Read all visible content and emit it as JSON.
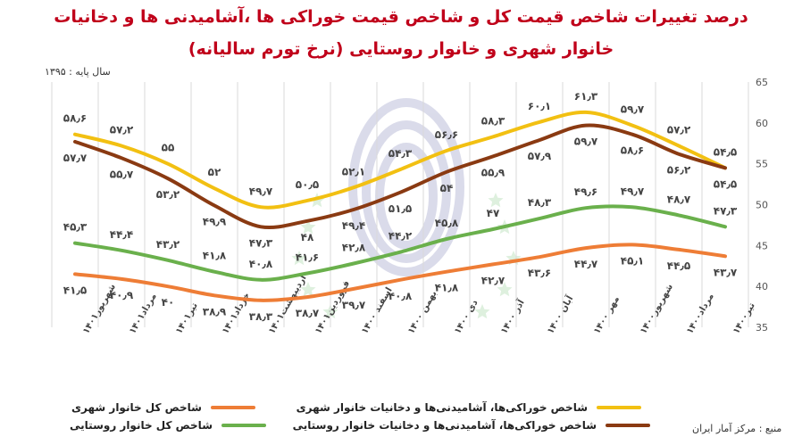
{
  "header": {
    "title_line1": "درصد تغییرات شاخص قیمت کل و شاخص قیمت خوراکی ها ،آشامیدنی ها و دخانیات",
    "title_line2": "خانوار شهری و خانوار روستایی (نرخ تورم سالیانه)",
    "base_year": "سال پایه : ۱۳۹۵",
    "source": "منبع : مرکز آمار ایران"
  },
  "chart_data": {
    "type": "line",
    "categories": [
      "شهریور۱۴۰۱",
      "مرداد۱۴۰۱",
      "تیر۱۴۰۱",
      "خرداد۱۴۰۱",
      "اردیبهشت۱۴۰۱",
      "فروردین۱۴۰۱",
      "اسفند ۱۴۰۰",
      "بهمن ۱۴۰۰",
      "دی ۱۴۰۰",
      "آذر ۱۴۰۰",
      "آبان ۱۴۰۰",
      "مهر ۱۴۰۰",
      "شهریور۱۴۰۰",
      "مرداد۱۴۰۰",
      "تیر۱۴۰۰"
    ],
    "ylim": [
      35,
      65
    ],
    "yticks": [
      35,
      40,
      45,
      50,
      55,
      60,
      65
    ],
    "grid": "vertical",
    "legend_position": "bottom",
    "series": [
      {
        "name": "شاخص خوراکی‌ها، آشامیدنی‌ها و دخانیات خانوار شهری",
        "color": "#f2c012",
        "values": [
          58.6,
          57.2,
          55,
          52,
          49.7,
          50.5,
          52.1,
          54.3,
          56.6,
          58.3,
          60.1,
          61.3,
          59.7,
          57.2,
          54.5
        ],
        "labels": [
          "۵۸٫۶",
          "۵۷٫۲",
          "۵۵",
          "۵۲",
          "۴۹٫۷",
          "۵۰٫۵",
          "۵۲٫۱",
          "۵۴٫۳",
          "۵۶٫۶",
          "۵۸٫۳",
          "۶۰٫۱",
          "۶۱٫۳",
          "۵۹٫۷",
          "۵۷٫۲",
          "۵۴٫۵"
        ]
      },
      {
        "name": "شاخص خوراکی‌ها، آشامیدنی‌ها و دخانیات خانوار روستایی",
        "color": "#8a3a12",
        "values": [
          57.7,
          55.7,
          53.2,
          49.9,
          47.3,
          48,
          49.4,
          51.5,
          54,
          55.9,
          57.9,
          59.7,
          58.6,
          56.2,
          54.5
        ],
        "labels": [
          "۵۷٫۷",
          "۵۵٫۷",
          "۵۳٫۲",
          "۴۹٫۹",
          "۴۷٫۳",
          "۴۸",
          "۴۹٫۴",
          "۵۱٫۵",
          "۵۴",
          "۵۵٫۹",
          "۵۷٫۹",
          "۵۹٫۷",
          "۵۸٫۶",
          "۵۶٫۲",
          "۵۴٫۵"
        ]
      },
      {
        "name": "شاخص کل خانوار روستایی",
        "color": "#6ab04c",
        "values": [
          45.3,
          44.4,
          43.2,
          41.8,
          40.8,
          41.6,
          42.8,
          44.2,
          45.8,
          47,
          48.3,
          49.6,
          49.7,
          48.7,
          47.3
        ],
        "labels": [
          "۴۵٫۳",
          "۴۴٫۴",
          "۴۳٫۲",
          "۴۱٫۸",
          "۴۰٫۸",
          "۴۱٫۶",
          "۴۲٫۸",
          "۴۴٫۲",
          "۴۵٫۸",
          "۴۷",
          "۴۸٫۳",
          "۴۹٫۶",
          "۴۹٫۷",
          "۴۸٫۷",
          "۴۷٫۳"
        ]
      },
      {
        "name": "شاخص کل خانوار شهری",
        "color": "#ee7d36",
        "values": [
          41.5,
          40.9,
          40,
          38.9,
          38.3,
          38.7,
          39.7,
          40.8,
          41.8,
          42.7,
          43.6,
          44.7,
          45.1,
          44.5,
          43.7
        ],
        "labels": [
          "۴۱٫۵",
          "۴۰٫۹",
          "۴۰",
          "۳۸٫۹",
          "۳۸٫۳",
          "۳۸٫۷",
          "۳۹٫۷",
          "۴۰٫۸",
          "۴۱٫۸",
          "۴۲٫۷",
          "۴۳٫۶",
          "۴۴٫۷",
          "۴۵٫۱",
          "۴۴٫۵",
          "۴۳٫۷"
        ]
      }
    ]
  }
}
